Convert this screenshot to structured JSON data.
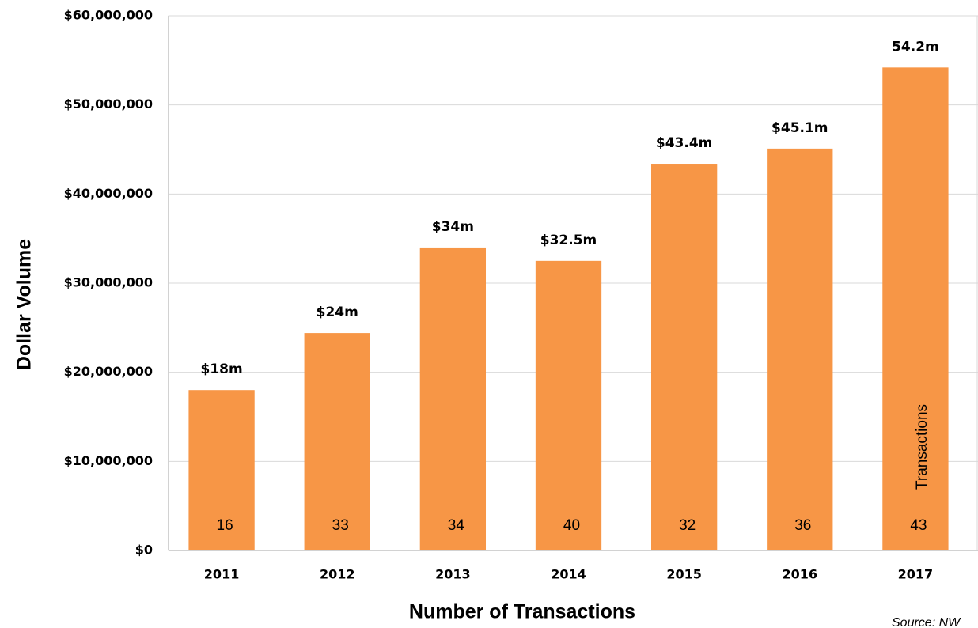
{
  "chart_data": {
    "type": "bar",
    "y_axis_label": "Dollar Volume",
    "x_axis_label": "Number of Transactions",
    "source": "Source: NW",
    "categories": [
      "2011",
      "2012",
      "2013",
      "2014",
      "2015",
      "2016",
      "2017"
    ],
    "values": [
      18000000,
      24400000,
      34000000,
      32500000,
      43400000,
      45100000,
      54200000
    ],
    "value_labels": [
      "$18m",
      "$24m",
      "$34m",
      "$32.5m",
      "$43.4m",
      "$45.1m",
      "54.2m"
    ],
    "transactions": [
      "16",
      "33",
      "34",
      "40",
      "32",
      "36",
      "43"
    ],
    "transactions_label": "Transactions",
    "color": "#f79646",
    "ylim": [
      0,
      60000000
    ],
    "yticks": [
      {
        "value": 0,
        "label": "$0"
      },
      {
        "value": 10000000,
        "label": "$10,000,000"
      },
      {
        "value": 20000000,
        "label": "$20,000,000"
      },
      {
        "value": 30000000,
        "label": "$30,000,000"
      },
      {
        "value": 40000000,
        "label": "$40,000,000"
      },
      {
        "value": 50000000,
        "label": "$50,000,000"
      },
      {
        "value": 60000000,
        "label": "$60,000,000"
      }
    ],
    "grid": true
  }
}
